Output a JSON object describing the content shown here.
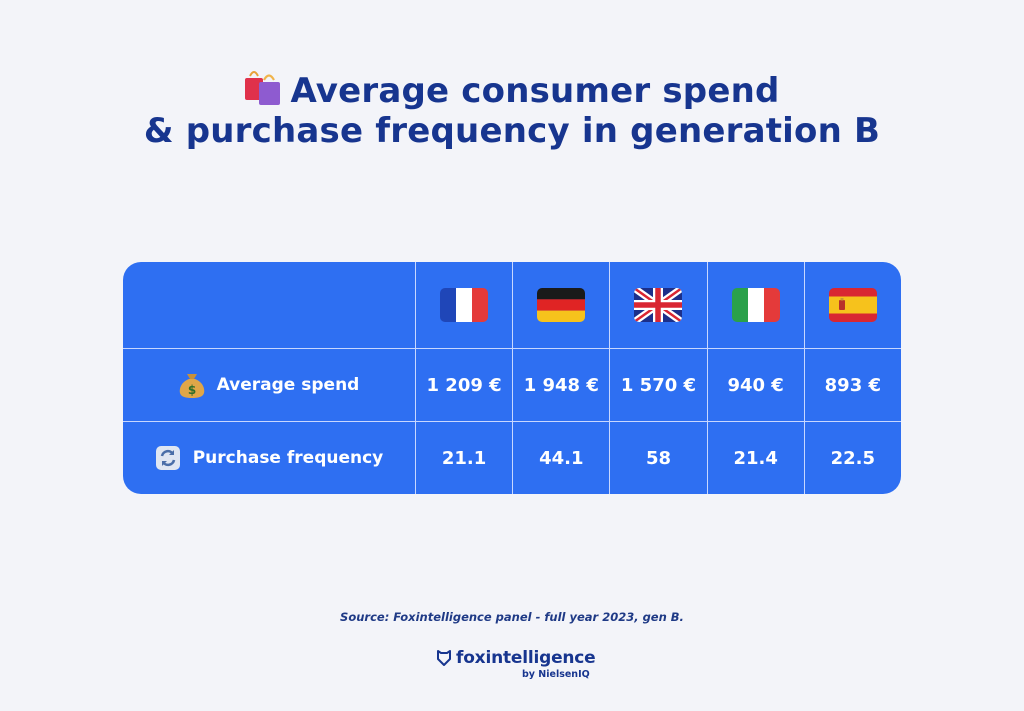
{
  "title": {
    "line1": "Average consumer spend",
    "line2": "& purchase frequency in generation B",
    "icon": "shopping-bags-icon"
  },
  "table": {
    "countries": [
      {
        "name": "France",
        "flag": "france-flag-icon"
      },
      {
        "name": "Germany",
        "flag": "germany-flag-icon"
      },
      {
        "name": "United Kingdom",
        "flag": "uk-flag-icon"
      },
      {
        "name": "Italy",
        "flag": "italy-flag-icon"
      },
      {
        "name": "Spain",
        "flag": "spain-flag-icon"
      }
    ],
    "rows": [
      {
        "label": "Average spend",
        "icon": "money-bag-icon",
        "values": [
          "1 209 €",
          "1 948 €",
          "1 570 €",
          "940 €",
          "893 €"
        ]
      },
      {
        "label": "Purchase frequency",
        "icon": "refresh-arrows-icon",
        "values": [
          "21.1",
          "44.1",
          "58",
          "21.4",
          "22.5"
        ]
      }
    ],
    "colors": {
      "background": "#2e6ff2",
      "divider": "#c8d7ff",
      "text": "#ffffff"
    }
  },
  "source": "Source: Foxintelligence panel - full year 2023, gen B.",
  "logo": {
    "name": "foxintelligence",
    "sub": "by NielsenIQ",
    "icon": "fox-shield-icon"
  },
  "colors": {
    "page_bg": "#f3f4f9",
    "title": "#17358f"
  }
}
